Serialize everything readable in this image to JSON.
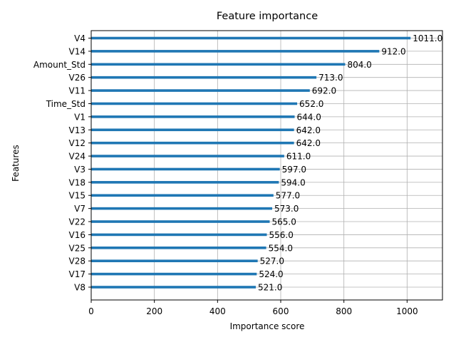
{
  "chart_data": {
    "type": "bar",
    "orientation": "horizontal",
    "title": "Feature importance",
    "xlabel": "Importance score",
    "ylabel": "Features",
    "categories": [
      "V4",
      "V14",
      "Amount_Std",
      "V26",
      "V11",
      "Time_Std",
      "V1",
      "V13",
      "V12",
      "V24",
      "V3",
      "V18",
      "V15",
      "V7",
      "V22",
      "V16",
      "V25",
      "V28",
      "V17",
      "V8"
    ],
    "values": [
      1011,
      912,
      804,
      713,
      692,
      652,
      644,
      642,
      642,
      611,
      597,
      594,
      577,
      573,
      565,
      556,
      554,
      527,
      524,
      521
    ],
    "value_labels": [
      "1011.0",
      "912.0",
      "804.0",
      "713.0",
      "692.0",
      "652.0",
      "644.0",
      "642.0",
      "642.0",
      "611.0",
      "597.0",
      "594.0",
      "577.0",
      "573.0",
      "565.0",
      "556.0",
      "554.0",
      "527.0",
      "524.0",
      "521.0"
    ],
    "xlim": [
      0,
      1112
    ],
    "xticks": [
      0,
      200,
      400,
      600,
      800,
      1000
    ],
    "xtick_labels": [
      "0",
      "200",
      "400",
      "600",
      "800",
      "1000"
    ],
    "grid": true,
    "bar_color": "#1f77b4"
  }
}
